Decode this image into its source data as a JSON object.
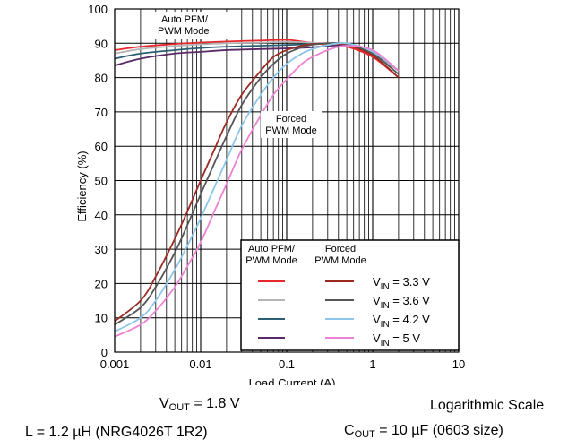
{
  "chart_data": {
    "type": "line",
    "ylabel": "Efficiency (%)",
    "xlabel": "Load Current (A)",
    "x_scale": "log",
    "xlim": [
      0.001,
      10
    ],
    "ylim": [
      0,
      100
    ],
    "x_ticks": [
      {
        "v": 0.001,
        "label": "0.001"
      },
      {
        "v": 0.01,
        "label": "0.01"
      },
      {
        "v": 0.1,
        "label": "0.1"
      },
      {
        "v": 1,
        "label": "1"
      },
      {
        "v": 10,
        "label": "10"
      }
    ],
    "y_ticks": [
      0,
      10,
      20,
      30,
      40,
      50,
      60,
      70,
      80,
      90,
      100
    ],
    "grid": true,
    "annotations": {
      "auto_line1": "Auto PFM/",
      "auto_line2": "PWM Mode",
      "forced_line1": "Forced",
      "forced_line2": "PWM Mode"
    },
    "legend": {
      "placement": "bottom-right",
      "col_auto_1": "Auto PFM/",
      "col_auto_2": "PWM Mode",
      "col_forced_1": "Forced",
      "col_forced_2": "PWM Mode",
      "prefix": "V",
      "sub": "IN",
      "rows": [
        {
          "value": " = 3.3 V",
          "auto_color": "#e8272d",
          "forced_color": "#9b2a22"
        },
        {
          "value": " = 3.6 V",
          "auto_color": "#b5b5b5",
          "forced_color": "#555555"
        },
        {
          "value": " = 4.2 V",
          "auto_color": "#2d5f72",
          "forced_color": "#8ec6ea"
        },
        {
          "value": " = 5 V",
          "auto_color": "#5a2a66",
          "forced_color": "#ee82d2"
        }
      ]
    },
    "series": [
      {
        "mode": "auto",
        "color": "#e8272d",
        "x": [
          0.001,
          0.002,
          0.005,
          0.01,
          0.02,
          0.05,
          0.1,
          0.15,
          0.3,
          0.5,
          1,
          2
        ],
        "y": [
          88,
          89,
          89.8,
          90.2,
          90.5,
          90.8,
          91,
          90.5,
          89.5,
          89,
          86,
          80
        ]
      },
      {
        "mode": "auto",
        "color": "#b5b5b5",
        "x": [
          0.001,
          0.002,
          0.005,
          0.01,
          0.02,
          0.05,
          0.1,
          0.15,
          0.3,
          0.5,
          1,
          2
        ],
        "y": [
          87,
          88.3,
          89.2,
          89.7,
          90,
          90.2,
          90.4,
          90.3,
          89.8,
          89.5,
          87,
          82
        ]
      },
      {
        "mode": "auto",
        "color": "#2d5f72",
        "x": [
          0.001,
          0.002,
          0.005,
          0.01,
          0.02,
          0.05,
          0.1,
          0.2,
          0.3,
          0.5,
          1,
          2
        ],
        "y": [
          85.5,
          87,
          88,
          88.6,
          89,
          89.3,
          89.5,
          89.8,
          90,
          89.8,
          87.5,
          82
        ]
      },
      {
        "mode": "auto",
        "color": "#5a2a66",
        "x": [
          0.001,
          0.002,
          0.005,
          0.01,
          0.02,
          0.05,
          0.1,
          0.2,
          0.3,
          0.5,
          1,
          2
        ],
        "y": [
          83.5,
          85.5,
          87,
          87.5,
          88,
          88.3,
          88.5,
          88.8,
          89.2,
          89.3,
          87.5,
          82
        ]
      },
      {
        "mode": "forced",
        "color": "#9b2a22",
        "x": [
          0.001,
          0.002,
          0.003,
          0.005,
          0.007,
          0.01,
          0.015,
          0.02,
          0.03,
          0.05,
          0.07,
          0.1,
          0.15,
          0.2,
          0.3,
          0.5,
          1,
          2
        ],
        "y": [
          9,
          15,
          22,
          33,
          41,
          50,
          60,
          67,
          75,
          82,
          86,
          88,
          89.3,
          89.8,
          90,
          89.5,
          86.5,
          80
        ]
      },
      {
        "mode": "forced",
        "color": "#555555",
        "x": [
          0.001,
          0.002,
          0.003,
          0.005,
          0.007,
          0.01,
          0.015,
          0.02,
          0.03,
          0.05,
          0.07,
          0.1,
          0.15,
          0.2,
          0.3,
          0.5,
          1,
          2
        ],
        "y": [
          8,
          13,
          19,
          29,
          37,
          46,
          56,
          63,
          72,
          80,
          84,
          87,
          88.8,
          89.6,
          90,
          89.8,
          87,
          81
        ]
      },
      {
        "mode": "forced",
        "color": "#8ec6ea",
        "x": [
          0.001,
          0.002,
          0.003,
          0.005,
          0.007,
          0.01,
          0.015,
          0.02,
          0.03,
          0.05,
          0.07,
          0.1,
          0.15,
          0.2,
          0.3,
          0.5,
          1,
          2
        ],
        "y": [
          6,
          10,
          15,
          24,
          31,
          39,
          49,
          56,
          66,
          75,
          80,
          84,
          87,
          88.3,
          89.5,
          90,
          87.5,
          82
        ]
      },
      {
        "mode": "forced",
        "color": "#ee82d2",
        "x": [
          0.001,
          0.002,
          0.003,
          0.005,
          0.007,
          0.01,
          0.015,
          0.02,
          0.03,
          0.05,
          0.07,
          0.1,
          0.15,
          0.2,
          0.3,
          0.5,
          1,
          2
        ],
        "y": [
          4.5,
          8,
          12,
          19,
          25,
          32,
          42,
          49,
          59,
          69,
          75,
          79.5,
          84,
          86,
          88,
          89.3,
          88,
          82
        ]
      }
    ]
  },
  "notes": {
    "vout_prefix": "V",
    "vout_sub": "OUT",
    "vout_value": " = 1.8 V",
    "scale": "Logarithmic Scale",
    "inductor": "L = 1.2 µH (NRG4026T 1R2)",
    "cout_prefix": "C",
    "cout_sub": "OUT",
    "cout_value": " = 10 µF (0603 size)"
  }
}
